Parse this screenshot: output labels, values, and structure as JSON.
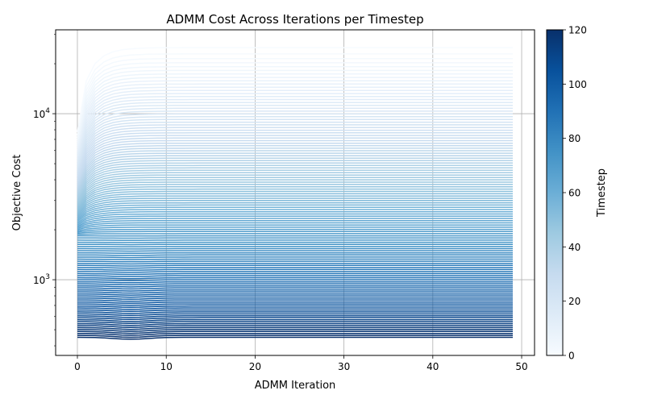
{
  "chart_data": {
    "type": "line",
    "title": "ADMM Cost Across Iterations per Timestep",
    "xlabel": "ADMM Iteration",
    "ylabel": "Objective Cost",
    "yscale": "log",
    "grid": true,
    "xlim": [
      -2.45,
      51.45
    ],
    "ylim": [
      350,
      32000
    ],
    "x_ticks": [
      0,
      10,
      20,
      30,
      40,
      50
    ],
    "x_tick_labels": [
      "0",
      "10",
      "20",
      "30",
      "40",
      "50"
    ],
    "y_ticks": [
      1000,
      10000
    ],
    "y_tick_labels": [
      "10³",
      "10⁴"
    ],
    "y_tick_base": "10",
    "y_tick_exponents": [
      "3",
      "4"
    ],
    "iterations": {
      "start": 0,
      "end": 49
    },
    "series_count": 121,
    "series_summary": {
      "timestep_range": [
        0,
        120
      ],
      "final_cost_timestep_0": 25000,
      "final_cost_timestep_120": 450,
      "initial_cost_timestep_120": 850,
      "min_cost_timestep_120": 440,
      "min_cost_iteration_timestep_120": 6
    },
    "colorbar": {
      "label": "Timestep",
      "colormap": "Blues",
      "range": [
        0,
        120
      ],
      "ticks": [
        0,
        20,
        40,
        60,
        80,
        100,
        120
      ],
      "tick_labels": [
        "0",
        "20",
        "40",
        "60",
        "80",
        "100",
        "120"
      ],
      "colors": [
        "#f7fbff",
        "#deebf7",
        "#c6dbef",
        "#9ecae1",
        "#6baed6",
        "#4292c6",
        "#2171b5",
        "#08519c",
        "#08306b"
      ]
    }
  }
}
